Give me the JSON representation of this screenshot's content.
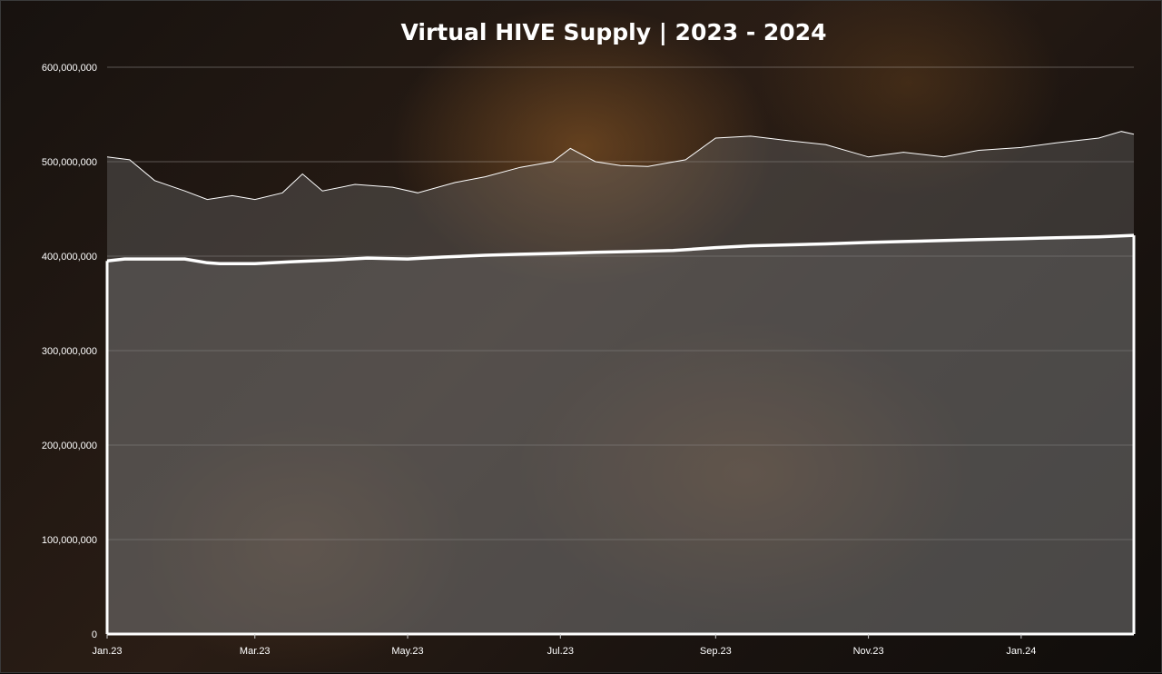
{
  "chart_data": {
    "type": "area",
    "title": "Virtual HIVE Supply | 2023 - 2024",
    "xlabel": "",
    "ylabel": "",
    "ylim": [
      0,
      600000000
    ],
    "yticks": [
      "0",
      "100,000,000",
      "200,000,000",
      "300,000,000",
      "400,000,000",
      "500,000,000",
      "600,000,000"
    ],
    "xticks": [
      "Jan.23",
      "Mar.23",
      "May.23",
      "Jul.23",
      "Sep.23",
      "Nov.23",
      "Jan.24"
    ],
    "grid": true,
    "x_start": "2023-01-01",
    "x_end": "2024-02-15",
    "series": [
      {
        "values": [
          [
            "2023-01-01",
            395000000
          ],
          [
            "2023-01-08",
            397000000
          ],
          [
            "2023-01-15",
            397000000
          ],
          [
            "2023-02-01",
            397000000
          ],
          [
            "2023-02-10",
            393000000
          ],
          [
            "2023-02-15",
            392000000
          ],
          [
            "2023-03-01",
            392000000
          ],
          [
            "2023-03-15",
            394000000
          ],
          [
            "2023-04-01",
            396000000
          ],
          [
            "2023-04-15",
            398000000
          ],
          [
            "2023-05-01",
            397000000
          ],
          [
            "2023-05-15",
            399000000
          ],
          [
            "2023-06-01",
            401000000
          ],
          [
            "2023-06-15",
            402000000
          ],
          [
            "2023-07-01",
            403000000
          ],
          [
            "2023-07-15",
            404000000
          ],
          [
            "2023-08-01",
            405000000
          ],
          [
            "2023-08-15",
            406000000
          ],
          [
            "2023-09-01",
            409000000
          ],
          [
            "2023-09-15",
            411000000
          ],
          [
            "2023-10-01",
            412000000
          ],
          [
            "2023-10-15",
            413000000
          ],
          [
            "2023-11-01",
            414500000
          ],
          [
            "2023-11-15",
            415500000
          ],
          [
            "2023-12-01",
            416500000
          ],
          [
            "2023-12-15",
            417500000
          ],
          [
            "2024-01-01",
            418500000
          ],
          [
            "2024-01-15",
            419500000
          ],
          [
            "2024-02-01",
            420500000
          ],
          [
            "2024-02-15",
            422000000
          ]
        ],
        "style": "area"
      },
      {
        "values": [
          [
            "2023-01-01",
            505000000
          ],
          [
            "2023-01-10",
            502000000
          ],
          [
            "2023-01-20",
            480000000
          ],
          [
            "2023-02-01",
            469000000
          ],
          [
            "2023-02-10",
            460000000
          ],
          [
            "2023-02-20",
            464000000
          ],
          [
            "2023-03-01",
            460000000
          ],
          [
            "2023-03-12",
            467000000
          ],
          [
            "2023-03-20",
            487000000
          ],
          [
            "2023-03-28",
            469000000
          ],
          [
            "2023-04-10",
            476000000
          ],
          [
            "2023-04-25",
            473000000
          ],
          [
            "2023-05-05",
            467000000
          ],
          [
            "2023-05-20",
            478000000
          ],
          [
            "2023-06-01",
            484000000
          ],
          [
            "2023-06-15",
            494000000
          ],
          [
            "2023-06-28",
            500000000
          ],
          [
            "2023-07-05",
            514000000
          ],
          [
            "2023-07-15",
            500000000
          ],
          [
            "2023-07-25",
            496000000
          ],
          [
            "2023-08-05",
            495000000
          ],
          [
            "2023-08-20",
            502000000
          ],
          [
            "2023-09-01",
            525000000
          ],
          [
            "2023-09-15",
            527000000
          ],
          [
            "2023-10-01",
            522000000
          ],
          [
            "2023-10-15",
            518000000
          ],
          [
            "2023-11-01",
            505000000
          ],
          [
            "2023-11-15",
            510000000
          ],
          [
            "2023-12-01",
            505000000
          ],
          [
            "2023-12-15",
            512000000
          ],
          [
            "2024-01-01",
            515000000
          ],
          [
            "2024-01-15",
            520000000
          ],
          [
            "2024-02-01",
            525000000
          ],
          [
            "2024-02-10",
            532000000
          ],
          [
            "2024-02-15",
            529000000
          ]
        ],
        "style": "line"
      }
    ]
  }
}
